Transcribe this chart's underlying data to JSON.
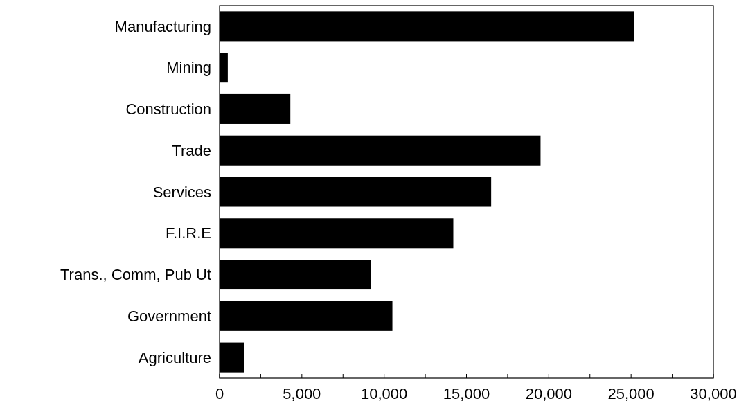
{
  "chart_data": {
    "type": "bar",
    "orientation": "horizontal",
    "categories": [
      "Manufacturing",
      "Mining",
      "Construction",
      "Trade",
      "Services",
      "F.I.R.E",
      "Trans., Comm, Pub Ut",
      "Government",
      "Agriculture"
    ],
    "values": [
      25200,
      500,
      4300,
      19500,
      16500,
      14200,
      9200,
      10500,
      1500
    ],
    "color": "#000000",
    "xlim": [
      0,
      30000
    ],
    "xticks": [
      0,
      {
        "value": 2500,
        "label": null
      },
      {
        "value": 5000,
        "label": "5,000"
      },
      {
        "value": 7500,
        "label": null
      },
      {
        "value": 10000,
        "label": "10,000"
      },
      {
        "value": 12500,
        "label": null
      },
      {
        "value": 15000,
        "label": "15,000"
      },
      {
        "value": 17500,
        "label": null
      },
      {
        "value": 20000,
        "label": "20,000"
      },
      {
        "value": 22500,
        "label": null
      },
      {
        "value": 25000,
        "label": "25,000"
      },
      {
        "value": 27500,
        "label": null
      },
      {
        "value": 30000,
        "label": "30,000"
      }
    ],
    "grid": false
  }
}
